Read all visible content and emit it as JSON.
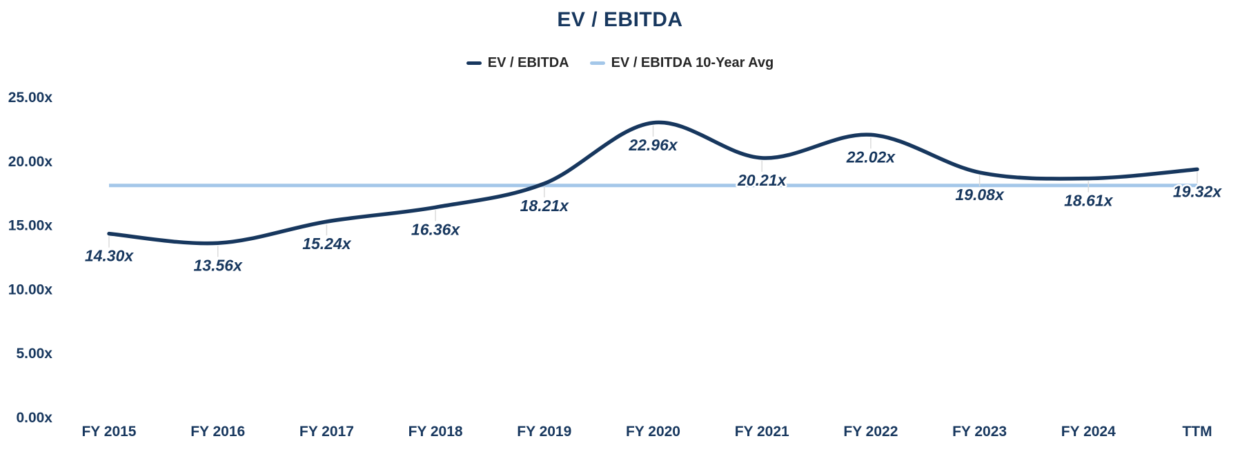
{
  "header": {
    "title": "EV / EBITDA"
  },
  "colors": {
    "navy": "#17375E",
    "light_blue": "#A4C7E9",
    "legend_text": "#262626",
    "leader_tick": "#DADADA",
    "background": "#FFFFFF"
  },
  "legend": {
    "items": [
      {
        "label": "EV / EBITDA",
        "color": "#17375E"
      },
      {
        "label": "EV / EBITDA 10-Year Avg",
        "color": "#A4C7E9"
      }
    ]
  },
  "chart_data": {
    "type": "line",
    "title": "EV / EBITDA",
    "categories": [
      "FY 2015",
      "FY 2016",
      "FY 2017",
      "FY 2018",
      "FY 2019",
      "FY 2020",
      "FY 2021",
      "FY 2022",
      "FY 2023",
      "FY 2024",
      "TTM"
    ],
    "series": [
      {
        "name": "EV / EBITDA",
        "style": "smooth-line",
        "color": "#17375E",
        "values": [
          14.3,
          13.56,
          15.24,
          16.36,
          18.21,
          22.96,
          20.21,
          22.02,
          19.08,
          18.61,
          19.32
        ],
        "labels": [
          "14.30x",
          "13.56x",
          "15.24x",
          "16.36x",
          "18.21x",
          "22.96x",
          "20.21x",
          "22.02x",
          "19.08x",
          "18.61x",
          "19.32x"
        ]
      },
      {
        "name": "EV / EBITDA 10-Year Avg",
        "style": "horizontal-line",
        "color": "#A4C7E9",
        "value": 18.06
      }
    ],
    "y_axis": {
      "ticks": [
        {
          "label": "25.00x",
          "value": 25
        },
        {
          "label": "20.00x",
          "value": 20
        },
        {
          "label": "15.00x",
          "value": 15
        },
        {
          "label": "10.00x",
          "value": 10
        },
        {
          "label": "5.00x",
          "value": 5
        },
        {
          "label": "0.00x",
          "value": 0
        }
      ]
    },
    "ylim": [
      0,
      25
    ],
    "grid": false,
    "legend_position": "top-center",
    "xlabel": "",
    "ylabel": ""
  }
}
